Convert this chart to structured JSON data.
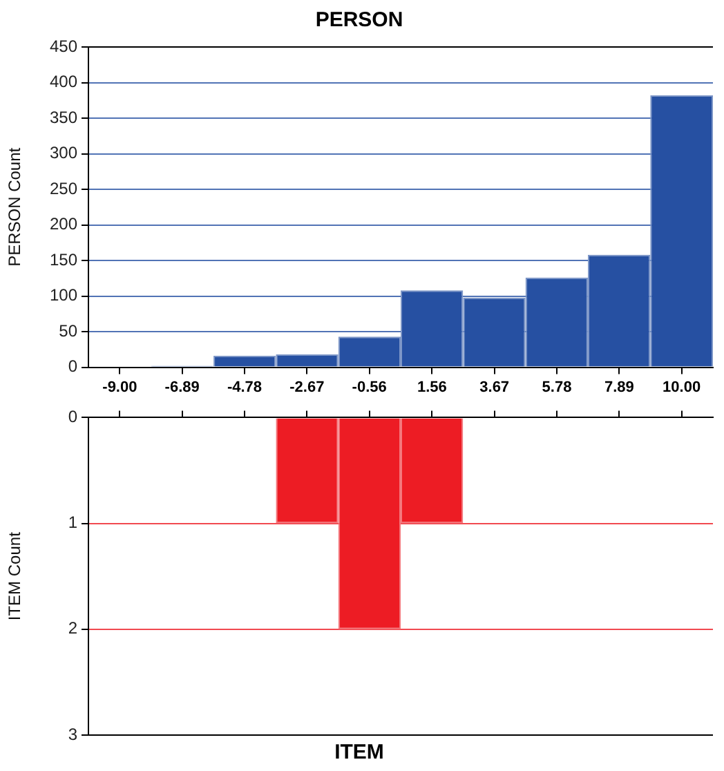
{
  "chart_data": [
    {
      "type": "histogram",
      "title": "PERSON",
      "ylabel": "PERSON Count",
      "bins": [
        -10.06,
        -7.94,
        -5.83,
        -3.72,
        -1.61,
        0.5,
        2.61,
        4.72,
        6.83,
        8.94,
        11.06
      ],
      "values": [
        0,
        2,
        16,
        18,
        43,
        108,
        98,
        126,
        158,
        382
      ],
      "color": "#2650a2",
      "xlim": [
        -10.06,
        11.06
      ],
      "xticks": [
        {
          "value": -9,
          "label": "-9.00"
        },
        {
          "value": -6.89,
          "label": "-6.89"
        },
        {
          "value": -4.78,
          "label": "-4.78"
        },
        {
          "value": -2.67,
          "label": "-2.67"
        },
        {
          "value": -0.56,
          "label": "-0.56"
        },
        {
          "value": 1.56,
          "label": "1.56"
        },
        {
          "value": 3.67,
          "label": "3.67"
        },
        {
          "value": 5.78,
          "label": "5.78"
        },
        {
          "value": 7.89,
          "label": "7.89"
        },
        {
          "value": 10,
          "label": "10.00"
        }
      ],
      "ylim": [
        0,
        450
      ],
      "yticks": [
        0,
        50,
        100,
        150,
        200,
        250,
        300,
        350,
        400,
        450
      ],
      "grid": "y"
    },
    {
      "type": "histogram",
      "xlabel": "ITEM",
      "ylabel": "ITEM Count",
      "bins": [
        -10.06,
        -7.94,
        -5.83,
        -3.72,
        -1.61,
        0.5,
        2.61,
        4.72,
        6.83,
        8.94,
        11.06
      ],
      "values": [
        0,
        0,
        0,
        1,
        2,
        1,
        0,
        0,
        0,
        0
      ],
      "color": "#ed1c24",
      "xlim": [
        -10.06,
        11.06
      ],
      "xticks": [
        {
          "value": -9,
          "label": null
        },
        {
          "value": -6.89,
          "label": null
        },
        {
          "value": -4.78,
          "label": null
        },
        {
          "value": -2.67,
          "label": null
        },
        {
          "value": -0.56,
          "label": null
        },
        {
          "value": 1.56,
          "label": null
        },
        {
          "value": 3.67,
          "label": null
        },
        {
          "value": 5.78,
          "label": null
        },
        {
          "value": 7.89,
          "label": null
        },
        {
          "value": 10,
          "label": null
        }
      ],
      "ylim": [
        3,
        0
      ],
      "yticks": [
        0,
        1,
        2,
        3
      ],
      "grid": "y",
      "tick_labels": "y"
    }
  ]
}
